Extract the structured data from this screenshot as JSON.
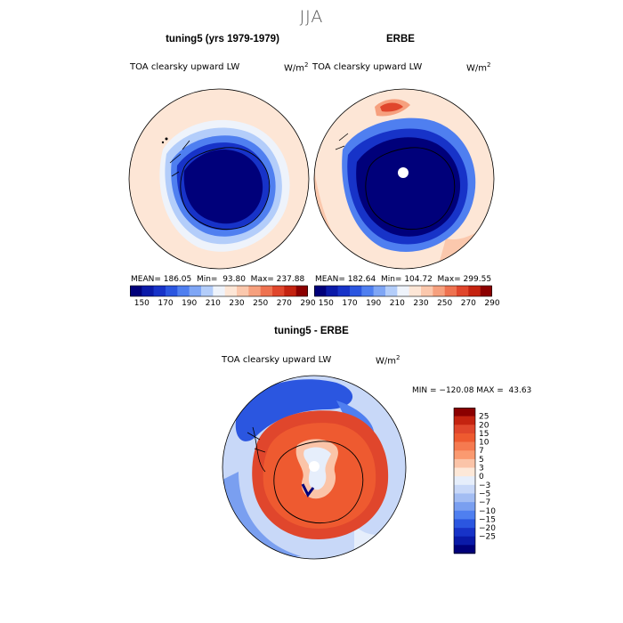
{
  "figure": {
    "title": "JJA"
  },
  "panels": [
    {
      "id": "model",
      "title": "tuning5 (yrs 1979-1979)",
      "variable": "TOA clearsky upward LW",
      "units": "W/m",
      "units_sup": "2",
      "stats": "MEAN= 186.05  Min=  93.80  Max= 237.88"
    },
    {
      "id": "obs",
      "title": "ERBE",
      "variable": "TOA clearsky upward LW",
      "units": "W/m",
      "units_sup": "2",
      "stats": "MEAN= 182.64  Min= 104.72  Max= 299.55"
    },
    {
      "id": "diff",
      "title": "tuning5 - ERBE",
      "variable": "TOA clearsky upward LW",
      "units": "W/m",
      "units_sup": "2",
      "stats": "MIN = −120.08 MAX =  43.63"
    }
  ],
  "colorbar_abs": {
    "colors": [
      "#00007a",
      "#0a1aa8",
      "#1733c8",
      "#2b56e0",
      "#4f7ff0",
      "#7fa6f5",
      "#b3cdfa",
      "#eef3fb",
      "#fde6d6",
      "#fbc8ad",
      "#f6a07e",
      "#ee7250",
      "#e0462c",
      "#c42310",
      "#8b0000"
    ],
    "labels": [
      "150",
      "170",
      "190",
      "210",
      "230",
      "250",
      "270",
      "290"
    ]
  },
  "colorbar_diff": {
    "colors": [
      "#8b0000",
      "#c42310",
      "#e0462c",
      "#ee5a30",
      "#f57a50",
      "#fa9a70",
      "#fbc4a8",
      "#fde8d8",
      "#e6eefb",
      "#c8d8f8",
      "#a3bdf3",
      "#7a9ff0",
      "#4f7ff0",
      "#2b56e0",
      "#1733c8",
      "#0a1aa8",
      "#00007a"
    ],
    "labels": [
      "25",
      "20",
      "15",
      "10",
      "7",
      "5",
      "3",
      "0",
      "−3",
      "−5",
      "−7",
      "−10",
      "−15",
      "−20",
      "−25"
    ]
  },
  "chart_data": [
    {
      "type": "heatmap",
      "projection": "south-polar-stereographic",
      "title": "tuning5 (yrs 1979-1979)",
      "variable": "TOA clearsky upward LW",
      "units": "W/m2",
      "season": "JJA",
      "mean": 186.05,
      "min": 93.8,
      "max": 237.88,
      "levels": [
        150,
        170,
        190,
        210,
        230,
        250,
        270,
        290
      ]
    },
    {
      "type": "heatmap",
      "projection": "south-polar-stereographic",
      "title": "ERBE",
      "variable": "TOA clearsky upward LW",
      "units": "W/m2",
      "season": "JJA",
      "mean": 182.64,
      "min": 104.72,
      "max": 299.55,
      "levels": [
        150,
        170,
        190,
        210,
        230,
        250,
        270,
        290
      ]
    },
    {
      "type": "heatmap",
      "projection": "south-polar-stereographic",
      "title": "tuning5 - ERBE",
      "variable": "TOA clearsky upward LW",
      "units": "W/m2",
      "season": "JJA",
      "min": -120.08,
      "max": 43.63,
      "levels": [
        -25,
        -20,
        -15,
        -10,
        -7,
        -5,
        -3,
        0,
        3,
        5,
        7,
        10,
        15,
        20,
        25
      ]
    }
  ]
}
